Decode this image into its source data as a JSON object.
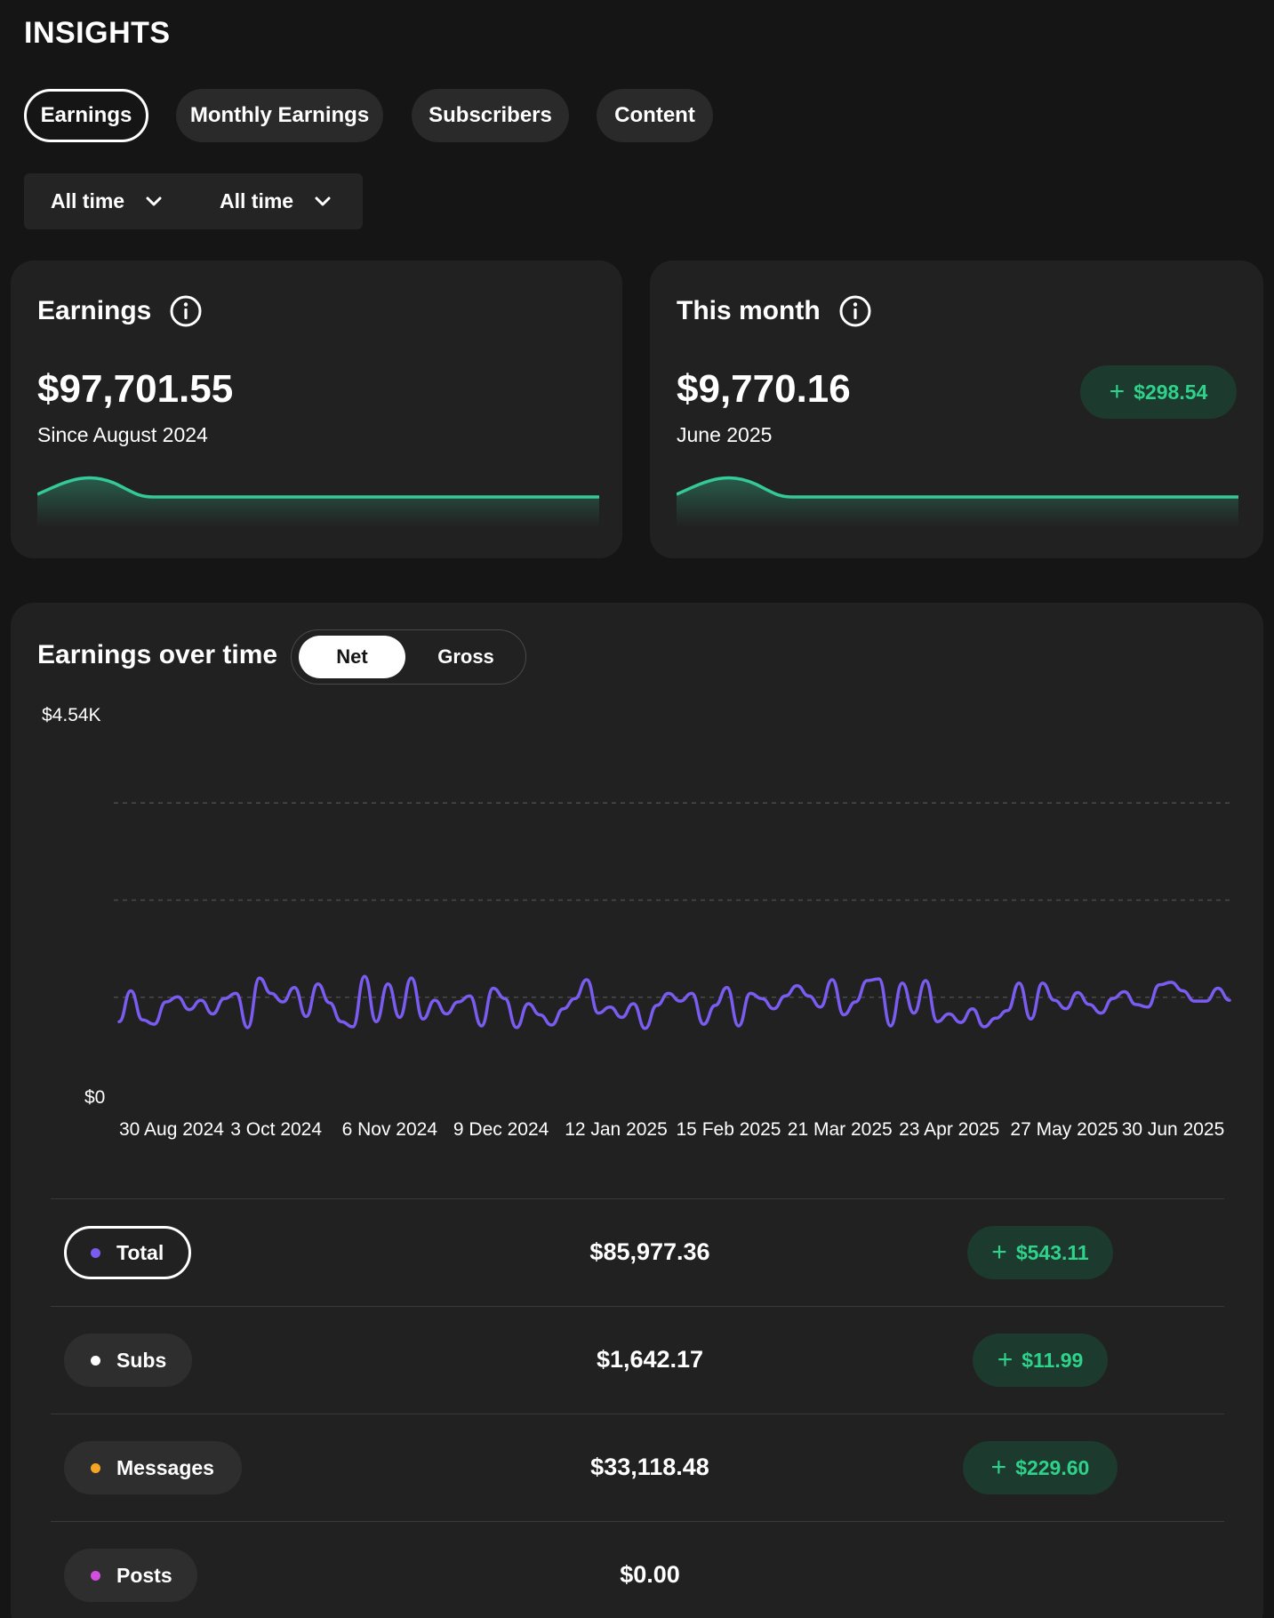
{
  "page": {
    "title": "INSIGHTS"
  },
  "tabs": [
    {
      "label": "Earnings",
      "active": true
    },
    {
      "label": "Monthly Earnings",
      "active": false
    },
    {
      "label": "Subscribers",
      "active": false
    },
    {
      "label": "Content",
      "active": false
    }
  ],
  "filters": [
    {
      "label": "All time",
      "icon": "chevron-down-icon"
    },
    {
      "label": "All time",
      "icon": "chevron-down-icon"
    }
  ],
  "summary_cards": {
    "earnings": {
      "title": "Earnings",
      "icon": "info-icon",
      "amount": "$97,701.55",
      "subtitle": "Since August 2024"
    },
    "this_month": {
      "title": "This month",
      "icon": "info-icon",
      "amount": "$9,770.16",
      "subtitle": "June 2025",
      "delta": "$298.54"
    }
  },
  "earnings_over_time": {
    "title": "Earnings over time",
    "toggle": {
      "options": [
        "Net",
        "Gross"
      ],
      "selected": "Net"
    },
    "y_top_label": "$4.54K",
    "y_bottom_label": "$0",
    "x_labels": [
      "30 Aug 2024",
      "3 Oct 2024",
      "6 Nov 2024",
      "9 Dec 2024",
      "12 Jan 2025",
      "15 Feb 2025",
      "21 Mar 2025",
      "23 Apr 2025",
      "27 May 2025",
      "30 Jun 2025"
    ]
  },
  "chart_data": {
    "type": "line",
    "xlabel": "",
    "ylabel": "",
    "ylim": [
      0,
      4540
    ],
    "grid": true,
    "tick_labels_x": [
      "30 Aug 2024",
      "3 Oct 2024",
      "6 Nov 2024",
      "9 Dec 2024",
      "12 Jan 2025",
      "15 Feb 2025",
      "21 Mar 2025",
      "23 Apr 2025",
      "27 May 2025",
      "30 Jun 2025"
    ],
    "tick_labels_y": [
      "$0",
      "$4.54K"
    ],
    "series": [
      {
        "color": "#7b5cf0",
        "x_range": [
          "2024-08-28",
          "2025-07-04"
        ],
        "values": [
          850,
          1210,
          870,
          820,
          1080,
          1140,
          990,
          1100,
          940,
          1120,
          1180,
          780,
          1360,
          1180,
          1080,
          1250,
          910,
          1290,
          1070,
          850,
          790,
          1380,
          850,
          1290,
          900,
          1360,
          880,
          1100,
          940,
          1080,
          1150,
          800,
          1240,
          1120,
          780,
          1060,
          930,
          810,
          1000,
          1120,
          1340,
          950,
          1020,
          900,
          1060,
          770,
          1040,
          1180,
          1090,
          1180,
          820,
          1040,
          1250,
          800,
          1180,
          1120,
          1000,
          1150,
          1270,
          1150,
          1020,
          1340,
          930,
          1080,
          1330,
          1350,
          800,
          1300,
          950,
          1330,
          850,
          940,
          840,
          1000,
          790,
          890,
          980,
          1300,
          880,
          1300,
          1100,
          1000,
          1190,
          1050,
          950,
          1120,
          1200,
          1050,
          1020,
          1280,
          1310,
          1210,
          1090,
          1090,
          1240,
          1100
        ]
      }
    ]
  },
  "breakdown": [
    {
      "label": "Total",
      "dot_color": "#7b5cf0",
      "value": "$85,977.36",
      "delta": "$543.11",
      "active": true
    },
    {
      "label": "Subs",
      "dot_color": "#ffffff",
      "value": "$1,642.17",
      "delta": "$11.99",
      "active": false
    },
    {
      "label": "Messages",
      "dot_color": "#f5a524",
      "value": "$33,118.48",
      "delta": "$229.60",
      "active": false
    },
    {
      "label": "Posts",
      "dot_color": "#d24ee0",
      "value": "$0.00",
      "delta": null,
      "active": false
    }
  ],
  "colors": {
    "background": "#151515",
    "card": "#212121",
    "accent_green": "#2fd28a",
    "sparkline": "#35c99a",
    "line_series": "#7b5cf0"
  }
}
